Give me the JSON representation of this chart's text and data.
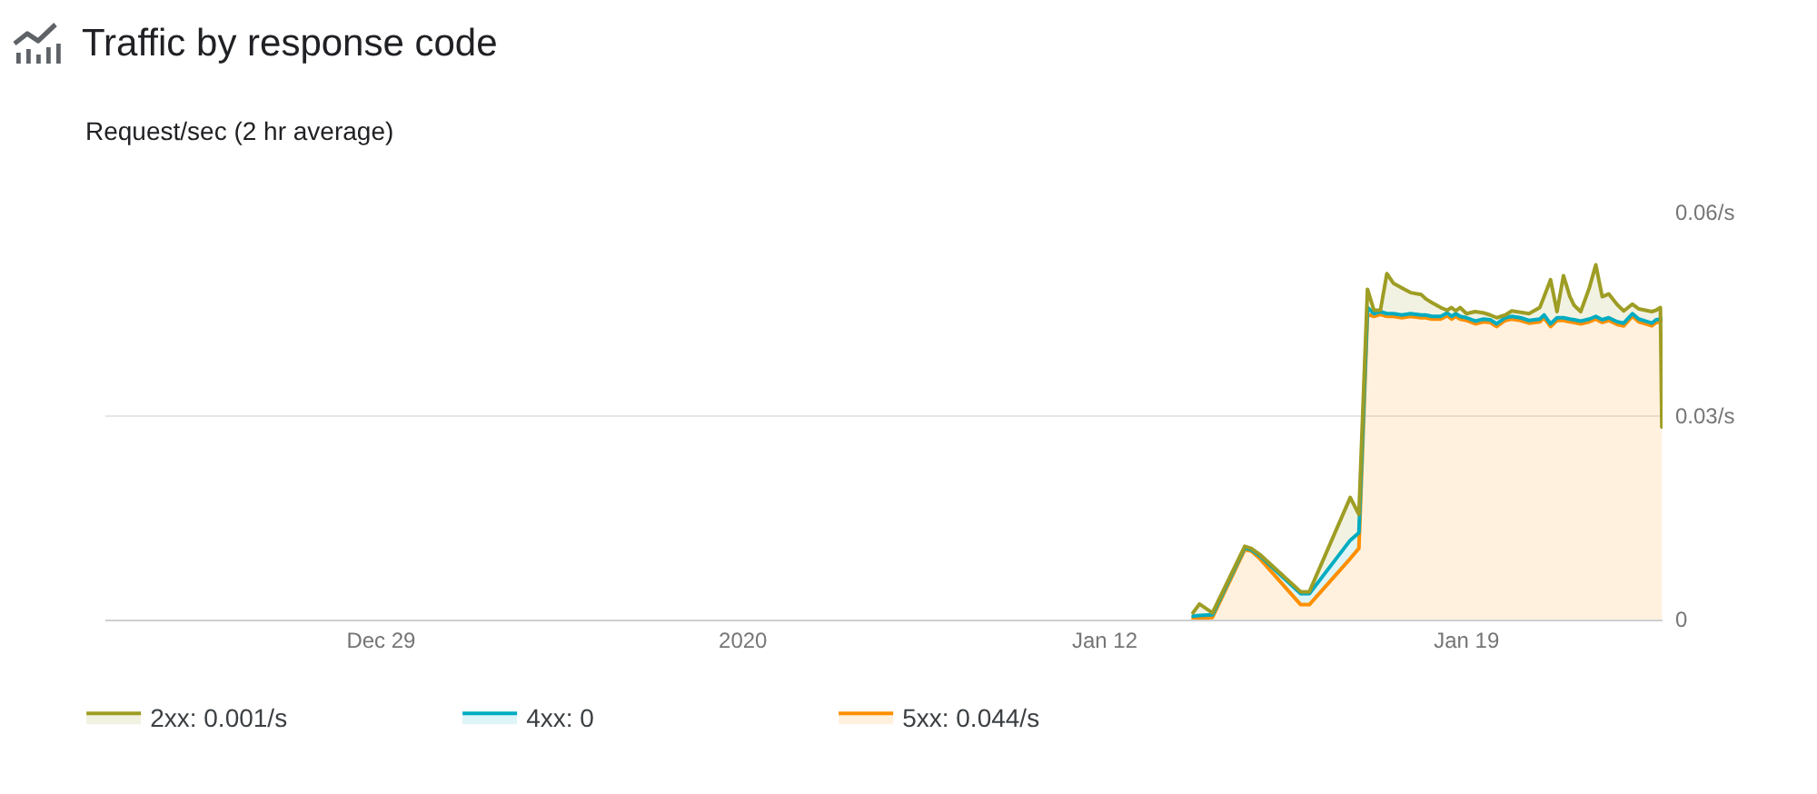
{
  "chart_data": {
    "type": "area",
    "title": "Traffic by response code",
    "subtitle": "Request/sec (2 hr average)",
    "x": [
      "2020-01-13T17:00",
      "2020-01-13T20:00",
      "2020-01-14T02:00",
      "2020-01-14T17:00",
      "2020-01-14T20:00",
      "2020-01-15T00:00",
      "2020-01-15T19:00",
      "2020-01-15T23:00",
      "2020-01-16T18:00",
      "2020-01-16T22:00",
      "2020-01-17T02:00",
      "2020-01-17T05:00",
      "2020-01-17T08:00",
      "2020-01-17T11:00",
      "2020-01-17T14:00",
      "2020-01-17T18:00",
      "2020-01-17T22:00",
      "2020-01-18T03:00",
      "2020-01-18T05:00",
      "2020-01-18T08:00",
      "2020-01-18T12:00",
      "2020-01-18T15:00",
      "2020-01-18T17:00",
      "2020-01-18T19:00",
      "2020-01-18T21:00",
      "2020-01-19T00:00",
      "2020-01-19T04:00",
      "2020-01-19T08:00",
      "2020-01-19T11:00",
      "2020-01-19T14:00",
      "2020-01-19T18:00",
      "2020-01-19T21:00",
      "2020-01-20T01:00",
      "2020-01-20T05:00",
      "2020-01-20T10:00",
      "2020-01-20T12:00",
      "2020-01-20T15:00",
      "2020-01-20T18:00",
      "2020-01-20T21:00",
      "2020-01-21T00:00",
      "2020-01-21T02:00",
      "2020-01-21T05:00",
      "2020-01-21T09:00",
      "2020-01-21T12:00",
      "2020-01-21T15:00",
      "2020-01-21T18:00",
      "2020-01-21T22:00",
      "2020-01-22T01:00",
      "2020-01-22T05:00",
      "2020-01-22T08:00",
      "2020-01-22T11:00",
      "2020-01-22T14:00",
      "2020-01-22T16:00",
      "2020-01-22T18:00",
      "2020-01-22T18:40"
    ],
    "series": [
      {
        "name": "2xx: 0.001/s",
        "color": "#9e9d24",
        "values": [
          0.001,
          0.0023,
          0.001,
          0.0108,
          0.0105,
          0.0096,
          0.0041,
          0.0041,
          0.018,
          0.0155,
          0.0487,
          0.0456,
          0.0456,
          0.051,
          0.0496,
          0.0489,
          0.0482,
          0.0479,
          0.0473,
          0.0467,
          0.046,
          0.0456,
          0.046,
          0.0455,
          0.046,
          0.0451,
          0.0454,
          0.0452,
          0.0449,
          0.0445,
          0.0449,
          0.0455,
          0.0453,
          0.0451,
          0.046,
          0.0476,
          0.0501,
          0.0454,
          0.0507,
          0.0476,
          0.0463,
          0.0454,
          0.0489,
          0.0523,
          0.0476,
          0.048,
          0.0464,
          0.0455,
          0.0465,
          0.0458,
          0.0456,
          0.0454,
          0.0456,
          0.046,
          0.0284
        ]
      },
      {
        "name": "4xx: 0",
        "color": "#00acc1",
        "values": [
          0.0005,
          0.0006,
          0.0007,
          0.0106,
          0.0103,
          0.0094,
          0.0038,
          0.0038,
          0.0117,
          0.0128,
          0.046,
          0.0451,
          0.0454,
          0.0451,
          0.0451,
          0.0449,
          0.0451,
          0.0449,
          0.0449,
          0.0447,
          0.0447,
          0.0452,
          0.0447,
          0.0451,
          0.0447,
          0.0445,
          0.044,
          0.0443,
          0.0442,
          0.0436,
          0.0445,
          0.0447,
          0.0445,
          0.0441,
          0.0443,
          0.0449,
          0.0436,
          0.0445,
          0.0445,
          0.0443,
          0.0442,
          0.044,
          0.0443,
          0.0447,
          0.0442,
          0.0445,
          0.0439,
          0.0437,
          0.0451,
          0.0443,
          0.044,
          0.0437,
          0.0442,
          0.0443,
          0.0443
        ]
      },
      {
        "name": "5xx: 0.044/s",
        "color": "#ff8f00",
        "values": [
          0.0002,
          0.0002,
          0.0003,
          0.0103,
          0.0101,
          0.009,
          0.0022,
          0.0022,
          0.009,
          0.0105,
          0.045,
          0.0447,
          0.045,
          0.0447,
          0.0447,
          0.0445,
          0.0447,
          0.0445,
          0.0445,
          0.0443,
          0.0443,
          0.0448,
          0.0443,
          0.0447,
          0.0443,
          0.0441,
          0.0436,
          0.0439,
          0.0438,
          0.0432,
          0.0441,
          0.0443,
          0.0441,
          0.0437,
          0.0439,
          0.0445,
          0.0432,
          0.0441,
          0.0441,
          0.0439,
          0.0438,
          0.0436,
          0.0439,
          0.0443,
          0.0438,
          0.0441,
          0.0435,
          0.0433,
          0.0447,
          0.0439,
          0.0436,
          0.0433,
          0.0438,
          0.0439,
          0.044
        ]
      }
    ],
    "xlim": [
      "2019-12-23T16:00",
      "2020-01-22T19:00"
    ],
    "xticks": [
      {
        "value": "2019-12-29",
        "label": "Dec 29"
      },
      {
        "value": "2020-01-05",
        "label": "2020"
      },
      {
        "value": "2020-01-12",
        "label": "Jan 12"
      },
      {
        "value": "2020-01-19",
        "label": "Jan 19"
      }
    ],
    "ylim": [
      0,
      0.06
    ],
    "yticks": [
      0,
      {
        "value": 0.03,
        "label": "0.03/s"
      },
      {
        "value": 0.06,
        "label": "0.06/s"
      }
    ],
    "grid": "y",
    "legend": "bottom"
  }
}
